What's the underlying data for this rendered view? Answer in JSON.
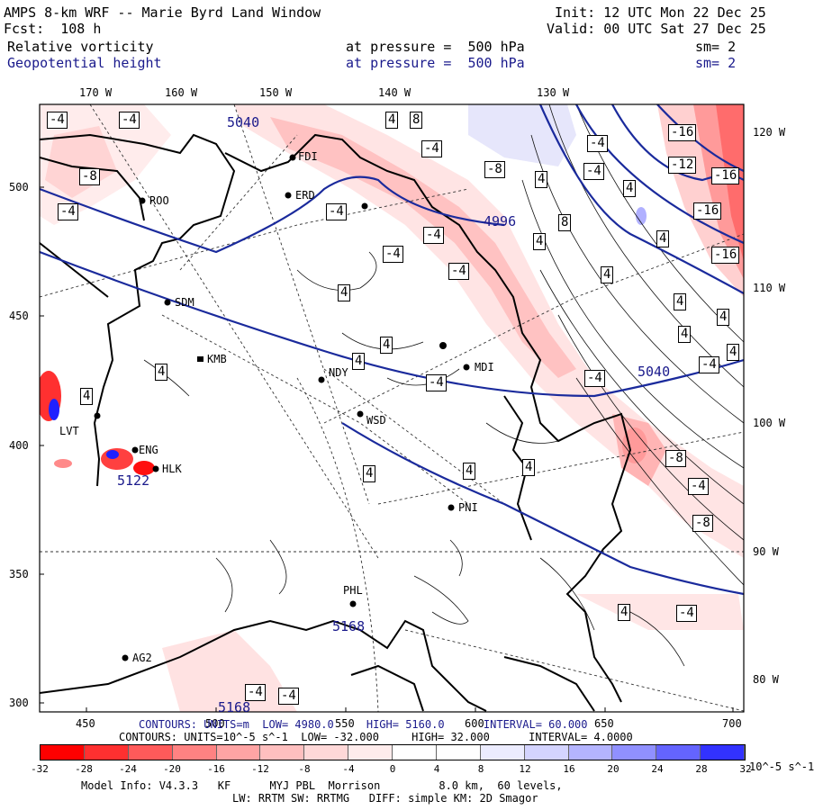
{
  "header": {
    "title": "AMPS 8-km WRF -- Marie Byrd Land Window",
    "init": "Init: 12 UTC Mon 22 Dec 25",
    "fcst": "Fcst:  108 h",
    "valid": "Valid: 00 UTC Sat 27 Dec 25",
    "field1": "Relative vorticity",
    "field1_level": "at pressure =  500 hPa",
    "field1_sm": "sm= 2",
    "field2": "Geopotential height",
    "field2_level": "at pressure =  500 hPa",
    "field2_sm": "sm= 2"
  },
  "axes": {
    "top_lon": [
      "170 W",
      "160 W",
      "150 W",
      "140 W",
      "130 W"
    ],
    "right_lon": [
      "120 W",
      "110 W",
      "100 W",
      "90 W",
      "80 W"
    ],
    "left_y": [
      "500",
      "450",
      "400",
      "350",
      "300"
    ],
    "bottom_x": [
      "450",
      "500",
      "550",
      "600",
      "650",
      "700"
    ]
  },
  "stations": [
    "ROO",
    "SDM",
    "KMB",
    "NDY",
    "WSD",
    "MDI",
    "FDI",
    "ERD",
    "LVT",
    "ENG",
    "HLK",
    "PNI",
    "PHL",
    "AG2"
  ],
  "height_labels": [
    "5040",
    "5040",
    "4996",
    "5122",
    "5168",
    "5168"
  ],
  "vort_labels": [
    "-4",
    "-4",
    "4",
    "8",
    "-4",
    "-8",
    "-4",
    "-4",
    "-16",
    "-12",
    "-16",
    "-16",
    "-16",
    "-4",
    "-8",
    "4",
    "8",
    "4",
    "4",
    "-4",
    "-4",
    "4",
    "4",
    "-4",
    "-4",
    "4",
    "4",
    "4",
    "4",
    "4",
    "4",
    "4",
    "-4",
    "4",
    "4",
    "-4",
    "-4",
    "-8",
    "-4",
    "4",
    "4",
    "4",
    "-8",
    "-4",
    "-4",
    "4",
    "-4"
  ],
  "contour_line1": "CONTOURS: UNITS=m  LOW= 4980.0     HIGH= 5160.0      INTERVAL= 60.000",
  "contour_line2": "CONTOURS: UNITS=10^-5 s^-1  LOW= -32.000     HIGH= 32.000      INTERVAL= 4.0000",
  "colorbar": {
    "ticks": [
      "-32",
      "-28",
      "-24",
      "-20",
      "-16",
      "-12",
      "-8",
      "-4",
      "0",
      "4",
      "8",
      "12",
      "16",
      "20",
      "24",
      "28",
      "32"
    ],
    "unit": "10^-5 s^-1",
    "colors": [
      "#ff0000",
      "#ff3030",
      "#ff5a5a",
      "#ff8282",
      "#ffa4a4",
      "#ffbfbf",
      "#ffd8d8",
      "#ffecec",
      "#ffffff",
      "#ffffff",
      "#ececff",
      "#d4d4ff",
      "#b4b4ff",
      "#9090ff",
      "#6464ff",
      "#3232ff",
      "#0000ff"
    ]
  },
  "footer": {
    "line1": "Model Info: V4.3.3   KF      MYJ PBL  Morrison         8.0 km,  60 levels,",
    "line2": "LW: RRTM SW: RRTMG   DIFF: simple KM: 2D Smagor"
  }
}
